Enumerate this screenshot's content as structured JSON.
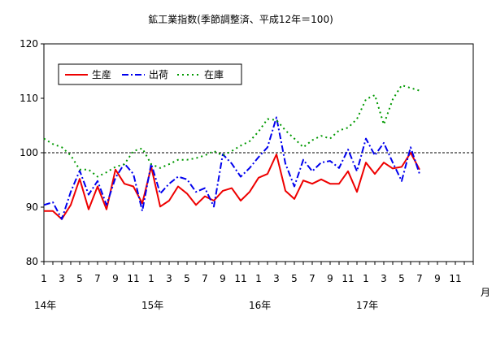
{
  "chart_data": {
    "type": "line",
    "title": "鉱工業指数(季節調整済、平成12年＝100)",
    "xlabel": "月",
    "ylabel": "",
    "ylim": [
      80,
      120
    ],
    "yticks": [
      "80",
      "90",
      "100",
      "110",
      "120"
    ],
    "xtick_labels": [
      "1",
      "3",
      "5",
      "7",
      "9",
      "11",
      "1",
      "3",
      "5",
      "7",
      "9",
      "11",
      "1",
      "3",
      "5",
      "7",
      "9",
      "11",
      "1",
      "3",
      "5",
      "7",
      "9",
      "11"
    ],
    "year_labels": [
      "14年",
      "15年",
      "16年",
      "17年"
    ],
    "reference_line": 100,
    "grid": false,
    "legend_position": "top-left",
    "series": [
      {
        "name": "生産",
        "color": "#ee0000",
        "style": "solid",
        "values": [
          89.3,
          89.3,
          87.8,
          90.4,
          95.2,
          89.6,
          93.8,
          89.6,
          96.9,
          94.3,
          93.8,
          90.7,
          97.4,
          90.1,
          91.2,
          93.8,
          92.5,
          90.4,
          92.0,
          91.2,
          93.0,
          93.5,
          91.2,
          92.8,
          95.4,
          96.1,
          99.7,
          93.0,
          91.5,
          94.9,
          94.3,
          95.1,
          94.3,
          94.3,
          96.6,
          92.8,
          98.2,
          96.1,
          98.2,
          97.1,
          97.4,
          100.0,
          96.9
        ]
      },
      {
        "name": "出荷",
        "color": "#0000ee",
        "style": "dashdot",
        "values": [
          90.4,
          90.9,
          87.8,
          92.8,
          96.7,
          92.3,
          94.8,
          90.4,
          95.4,
          98.0,
          96.1,
          89.3,
          98.0,
          92.5,
          94.3,
          95.6,
          95.1,
          92.8,
          93.5,
          90.1,
          99.7,
          98.0,
          95.6,
          97.2,
          99.2,
          101.0,
          106.5,
          98.0,
          93.8,
          98.7,
          96.6,
          98.2,
          98.5,
          97.2,
          100.6,
          96.6,
          102.6,
          99.5,
          101.8,
          98.2,
          94.8,
          101.0,
          96.1
        ]
      },
      {
        "name": "在庫",
        "color": "#009900",
        "style": "dotted",
        "values": [
          102.6,
          101.6,
          101.0,
          99.5,
          96.9,
          96.9,
          95.6,
          96.4,
          97.4,
          97.9,
          100.3,
          100.8,
          97.9,
          97.2,
          97.9,
          98.7,
          98.7,
          99.0,
          99.5,
          100.3,
          99.5,
          100.3,
          101.3,
          102.1,
          103.9,
          106.2,
          106.0,
          104.1,
          102.6,
          101.0,
          102.3,
          103.1,
          102.6,
          104.1,
          104.6,
          106.2,
          109.8,
          110.6,
          105.2,
          109.8,
          112.4,
          111.9,
          111.4
        ]
      }
    ]
  }
}
